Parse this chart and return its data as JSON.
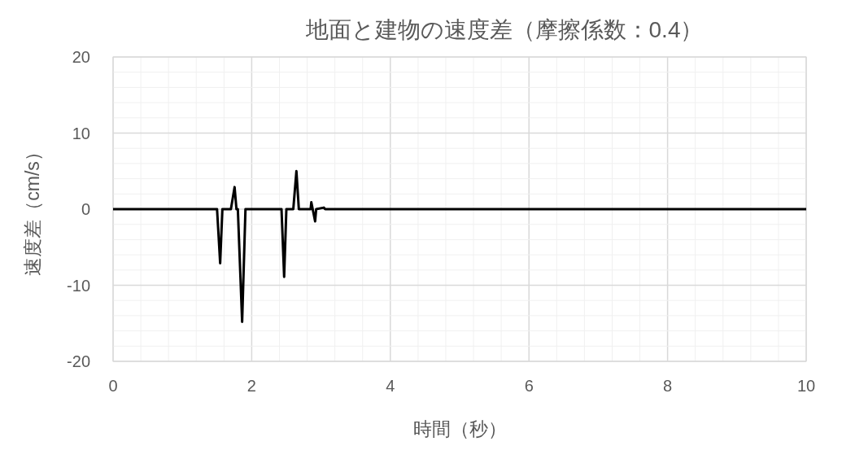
{
  "chart_data": {
    "type": "line",
    "title": "地面と建物の速度差（摩擦係数：0.4）",
    "xlabel": "時間（秒）",
    "ylabel": "速度差（cm/s）",
    "series": [
      {
        "color": "#000000",
        "x": [
          0,
          1.5,
          1.545,
          1.577,
          1.7,
          1.753,
          1.78,
          1.8,
          1.862,
          1.91,
          2.43,
          2.468,
          2.5,
          2.6,
          2.645,
          2.68,
          2.85,
          2.86,
          2.88,
          2.915,
          2.93,
          3.04,
          3.06,
          10
        ],
        "values": [
          0,
          0,
          -7.1,
          0,
          0,
          2.9,
          0,
          0,
          -14.8,
          0,
          0,
          -8.9,
          0,
          0,
          5.0,
          0,
          0,
          0.9,
          0,
          -1.6,
          0,
          0.2,
          0,
          0
        ]
      }
    ],
    "xlim": [
      0,
      10
    ],
    "ylim": [
      -20,
      20
    ],
    "xticks": [
      0,
      {
        "value": 0.4,
        "label": null
      },
      {
        "value": 0.8,
        "label": null
      },
      {
        "value": 1.2,
        "label": null
      },
      {
        "value": 1.6,
        "label": null
      },
      2,
      {
        "value": 2.4,
        "label": null
      },
      {
        "value": 2.8,
        "label": null
      },
      {
        "value": 3.2,
        "label": null
      },
      {
        "value": 3.6,
        "label": null
      },
      4,
      {
        "value": 4.4,
        "label": null
      },
      {
        "value": 4.8,
        "label": null
      },
      {
        "value": 5.2,
        "label": null
      },
      {
        "value": 5.6,
        "label": null
      },
      6,
      {
        "value": 6.4,
        "label": null
      },
      {
        "value": 6.8,
        "label": null
      },
      {
        "value": 7.2,
        "label": null
      },
      {
        "value": 7.6,
        "label": null
      },
      8,
      {
        "value": 8.4,
        "label": null
      },
      {
        "value": 8.8,
        "label": null
      },
      {
        "value": 9.2,
        "label": null
      },
      {
        "value": 9.6,
        "label": null
      },
      10
    ],
    "yticks": [
      -20,
      {
        "value": -18,
        "label": null
      },
      {
        "value": -16,
        "label": null
      },
      {
        "value": -14,
        "label": null
      },
      {
        "value": -12,
        "label": null
      },
      -10,
      {
        "value": -8,
        "label": null
      },
      {
        "value": -6,
        "label": null
      },
      {
        "value": -4,
        "label": null
      },
      {
        "value": -2,
        "label": null
      },
      0,
      {
        "value": 2,
        "label": null
      },
      {
        "value": 4,
        "label": null
      },
      {
        "value": 6,
        "label": null
      },
      {
        "value": 8,
        "label": null
      },
      10,
      {
        "value": 12,
        "label": null
      },
      {
        "value": 14,
        "label": null
      },
      {
        "value": 16,
        "label": null
      },
      {
        "value": 18,
        "label": null
      },
      20
    ],
    "grid": true,
    "marker": "none",
    "line_style": "solid"
  }
}
